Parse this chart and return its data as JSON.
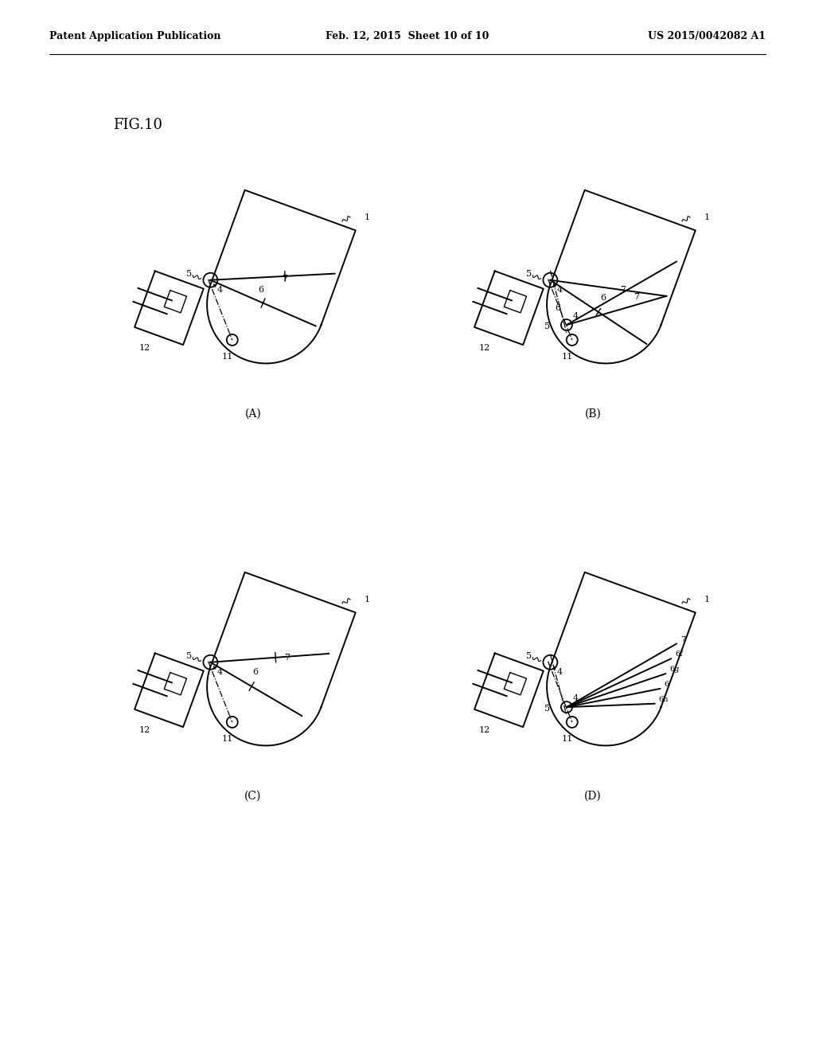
{
  "header_left": "Patent Application Publication",
  "header_center": "Feb. 12, 2015  Sheet 10 of 10",
  "header_right": "US 2015/0042082 A1",
  "background_color": "#ffffff",
  "line_color": "#000000",
  "fig_label": "FIG.10",
  "subfig_labels": [
    "(A)",
    "(B)",
    "(C)",
    "(D)"
  ]
}
